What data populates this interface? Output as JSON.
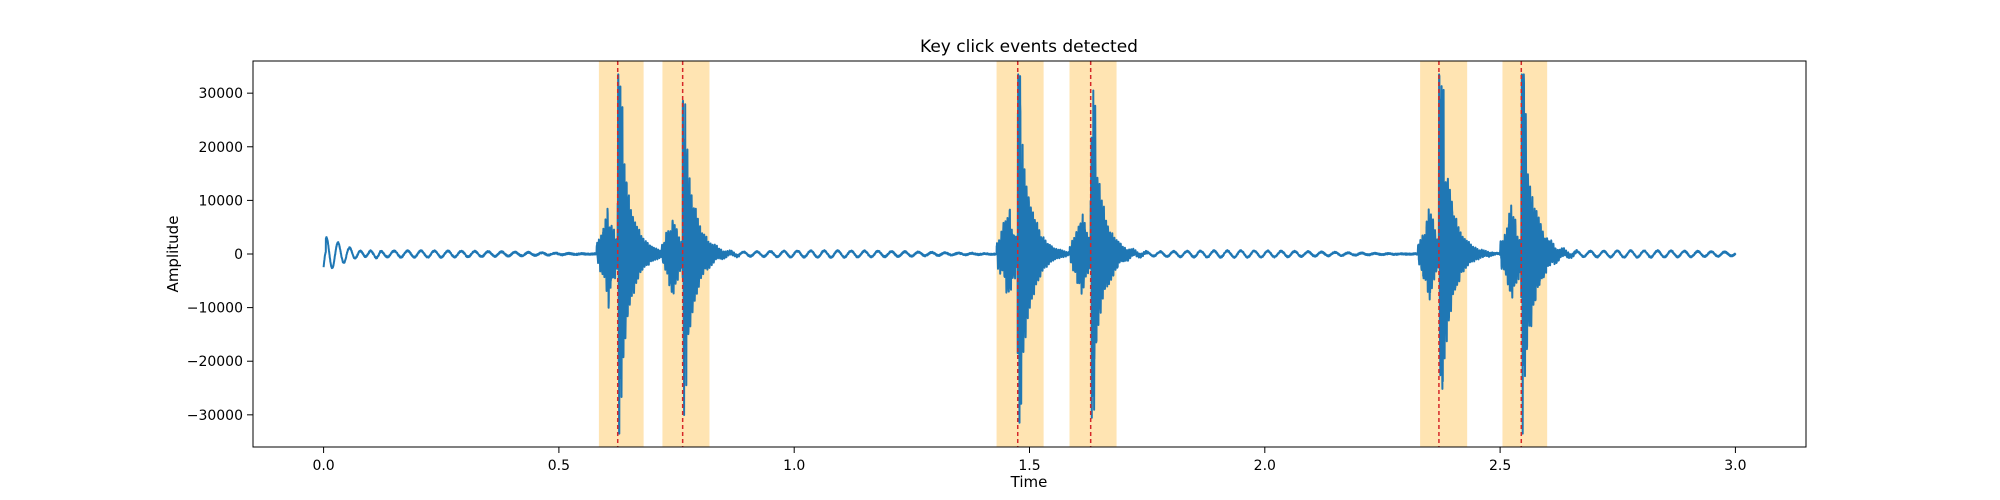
{
  "chart_data": {
    "type": "line",
    "title": "Key click events detected",
    "xlabel": "Time",
    "ylabel": "Amplitude",
    "xlim": [
      -0.15,
      3.15
    ],
    "ylim": [
      -36000,
      36000
    ],
    "xticks": [
      0.0,
      0.5,
      1.0,
      1.5,
      2.0,
      2.5,
      3.0
    ],
    "xtick_labels": [
      "0.0",
      "0.5",
      "1.0",
      "1.5",
      "2.0",
      "2.5",
      "3.0"
    ],
    "yticks": [
      30000,
      20000,
      10000,
      0,
      -10000,
      -20000,
      -30000
    ],
    "ytick_labels": [
      "30000",
      "20000",
      "10000",
      "0",
      "−10000",
      "−20000",
      "−30000"
    ],
    "grid": false,
    "series": [
      {
        "color": "#1f77b4",
        "duration": 3.0,
        "baseline_noise": 600,
        "onset_burst": {
          "t": 0.0,
          "amplitude": 3000,
          "length": 0.12
        }
      }
    ],
    "events": [
      {
        "time": 0.625,
        "span": [
          0.585,
          0.68
        ],
        "peak": 33000
      },
      {
        "time": 0.763,
        "span": [
          0.72,
          0.82
        ],
        "peak": 28000
      },
      {
        "time": 1.475,
        "span": [
          1.43,
          1.53
        ],
        "peak": 33000
      },
      {
        "time": 1.63,
        "span": [
          1.585,
          1.685
        ],
        "peak": 30000
      },
      {
        "time": 2.37,
        "span": [
          2.33,
          2.43
        ],
        "peak": 33000
      },
      {
        "time": 2.545,
        "span": [
          2.505,
          2.6
        ],
        "peak": 33000
      }
    ],
    "event_span_color": "#ffa500",
    "event_line_color": "#d62728"
  }
}
